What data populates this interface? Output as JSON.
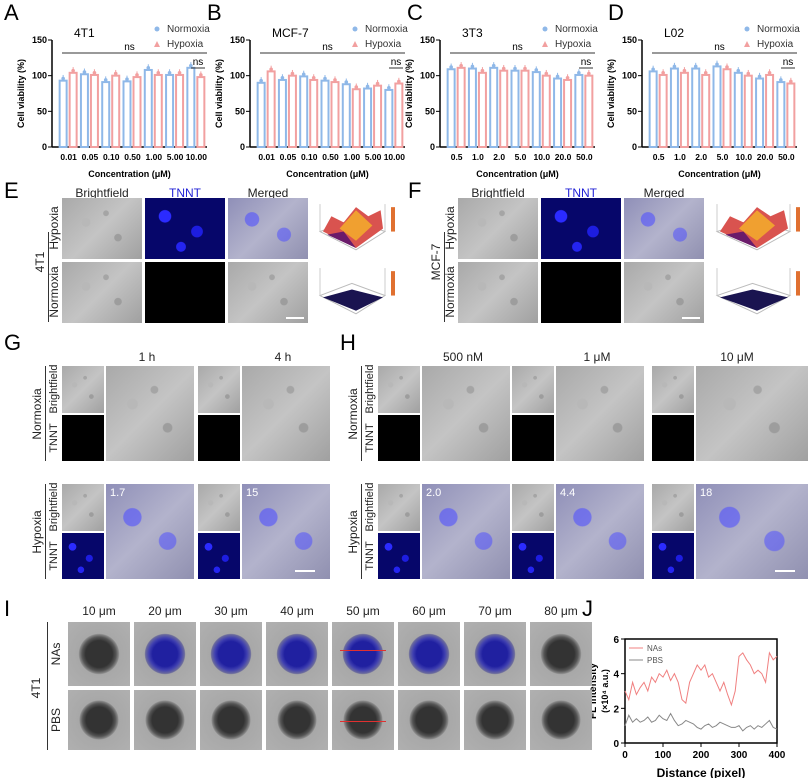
{
  "panels": {
    "A": "A",
    "B": "B",
    "C": "C",
    "D": "D",
    "E": "E",
    "F": "F",
    "G": "G",
    "H": "H",
    "I": "I",
    "J": "J"
  },
  "colors": {
    "normoxia": "#8fb8e8",
    "hypoxia": "#f2a0a0",
    "tnnt_label": "#1f1fd6",
    "nas_line": "#f08080",
    "pbs_line": "#888888"
  },
  "chart_data": [
    {
      "type": "bar",
      "panel": "A",
      "title": "4T1",
      "ylabel": "Cell viability (%)",
      "xlabel": "Concentration (μM)",
      "ylim": [
        0,
        150
      ],
      "yticks": [
        0,
        50,
        100,
        150
      ],
      "categories": [
        "0.01",
        "0.05",
        "0.10",
        "0.50",
        "1.00",
        "5.00",
        "10.00"
      ],
      "series": [
        {
          "name": "Normoxia",
          "values": [
            93,
            102,
            91,
            92,
            108,
            101,
            111
          ]
        },
        {
          "name": "Hypoxia",
          "values": [
            104,
            101,
            100,
            98,
            101,
            101,
            98
          ]
        }
      ],
      "annotations": [
        "ns",
        "ns"
      ],
      "legend": "top-right"
    },
    {
      "type": "bar",
      "panel": "B",
      "title": "MCF-7",
      "ylabel": "Cell viability (%)",
      "xlabel": "Concentration (μM)",
      "ylim": [
        0,
        150
      ],
      "yticks": [
        0,
        50,
        100,
        150
      ],
      "categories": [
        "0.01",
        "0.05",
        "0.10",
        "0.50",
        "1.00",
        "5.00",
        "10.00"
      ],
      "series": [
        {
          "name": "Normoxia",
          "values": [
            90,
            94,
            99,
            93,
            88,
            82,
            80
          ]
        },
        {
          "name": "Hypoxia",
          "values": [
            106,
            100,
            94,
            91,
            81,
            86,
            89
          ]
        }
      ],
      "annotations": [
        "ns",
        "ns"
      ],
      "legend": "top-right"
    },
    {
      "type": "bar",
      "panel": "C",
      "title": "3T3",
      "ylabel": "Cell viability (%)",
      "xlabel": "Concentration (μM)",
      "ylim": [
        0,
        150
      ],
      "yticks": [
        0,
        50,
        100,
        150
      ],
      "categories": [
        "0.5",
        "1.0",
        "2.0",
        "5.0",
        "10.0",
        "20.0",
        "50.0"
      ],
      "series": [
        {
          "name": "Normoxia",
          "values": [
            109,
            110,
            111,
            107,
            105,
            96,
            101
          ]
        },
        {
          "name": "Hypoxia",
          "values": [
            111,
            104,
            107,
            107,
            100,
            94,
            100
          ]
        }
      ],
      "annotations": [
        "ns",
        "ns"
      ],
      "legend": "top-right"
    },
    {
      "type": "bar",
      "panel": "D",
      "title": "L02",
      "ylabel": "Cell viability (%)",
      "xlabel": "Concentration (μM)",
      "ylim": [
        0,
        150
      ],
      "yticks": [
        0,
        50,
        100,
        150
      ],
      "categories": [
        "0.5",
        "1.0",
        "2.0",
        "5.0",
        "10.0",
        "20.0",
        "50.0"
      ],
      "series": [
        {
          "name": "Normoxia",
          "values": [
            106,
            110,
            110,
            113,
            104,
            96,
            91
          ]
        },
        {
          "name": "Hypoxia",
          "values": [
            101,
            104,
            101,
            109,
            100,
            101,
            89
          ]
        }
      ],
      "annotations": [
        "ns",
        "ns"
      ],
      "legend": "top-right"
    },
    {
      "type": "line",
      "panel": "J",
      "xlabel": "Distance (pixel)",
      "ylabel": "FL intensity\n(×10⁴ a.u.)",
      "ylabel_line1": "FL intensity",
      "ylabel_line2": "(×10⁴ a.u.)",
      "xlim": [
        0,
        400
      ],
      "ylim": [
        0,
        6
      ],
      "xticks": [
        0,
        100,
        200,
        300,
        400
      ],
      "yticks": [
        0,
        2,
        4,
        6
      ],
      "legend": "top-left",
      "x": [
        0,
        10,
        20,
        30,
        40,
        50,
        60,
        70,
        80,
        90,
        100,
        110,
        120,
        130,
        140,
        150,
        160,
        170,
        180,
        190,
        200,
        210,
        220,
        230,
        240,
        250,
        260,
        270,
        280,
        290,
        300,
        310,
        320,
        330,
        340,
        350,
        360,
        370,
        380,
        390,
        400
      ],
      "series": [
        {
          "name": "NAs",
          "values": [
            3.0,
            2.5,
            3.5,
            2.8,
            3.2,
            3.5,
            3.0,
            3.8,
            3.5,
            4.0,
            3.8,
            4.2,
            3.6,
            4.0,
            3.5,
            2.5,
            2.3,
            3.5,
            4.0,
            4.5,
            4.2,
            4.5,
            3.8,
            4.0,
            3.5,
            3.0,
            3.5,
            2.8,
            2.2,
            3.0,
            5.0,
            5.2,
            4.8,
            4.5,
            4.0,
            4.2,
            4.0,
            3.5,
            5.2,
            4.8,
            5.0
          ]
        },
        {
          "name": "PBS",
          "values": [
            1.0,
            1.6,
            1.2,
            1.4,
            1.2,
            1.3,
            1.5,
            1.2,
            1.3,
            1.6,
            1.4,
            1.3,
            1.7,
            1.3,
            1.0,
            1.1,
            1.3,
            1.2,
            1.1,
            0.9,
            0.8,
            1.0,
            1.1,
            0.9,
            1.0,
            1.2,
            1.1,
            1.0,
            0.9,
            0.9,
            1.0,
            0.7,
            0.9,
            1.0,
            0.8,
            1.0,
            0.9,
            1.1,
            1.3,
            0.9,
            0.8
          ]
        }
      ]
    }
  ],
  "E": {
    "cols": [
      "Brightfield",
      "TNNT",
      "Merged"
    ],
    "rows": [
      "Hypoxia",
      "Normoxia"
    ],
    "cell": "4T1"
  },
  "F": {
    "cols": [
      "Brightfield",
      "TNNT",
      "Merged"
    ],
    "rows": [
      "Hypoxia",
      "Normoxia"
    ],
    "cell": "MCF-7"
  },
  "G": {
    "times": [
      "1 h",
      "4 h"
    ],
    "conditions": [
      "Normoxia",
      "Hypoxia"
    ],
    "channels": [
      "Brightfield",
      "TNNT"
    ],
    "values": [
      "1.7",
      "15"
    ]
  },
  "H": {
    "concs": [
      "500 nM",
      "1 μM",
      "10 μM"
    ],
    "conditions": [
      "Normoxia",
      "Hypoxia"
    ],
    "channels": [
      "Brightfield",
      "TNNT"
    ],
    "values": [
      "2.0",
      "4.4",
      "18"
    ]
  },
  "I": {
    "depths": [
      "10 μm",
      "20 μm",
      "30 μm",
      "40 μm",
      "50 μm",
      "60 μm",
      "70 μm",
      "80 μm"
    ],
    "rows": [
      "NAs",
      "PBS"
    ],
    "cell": "4T1"
  }
}
